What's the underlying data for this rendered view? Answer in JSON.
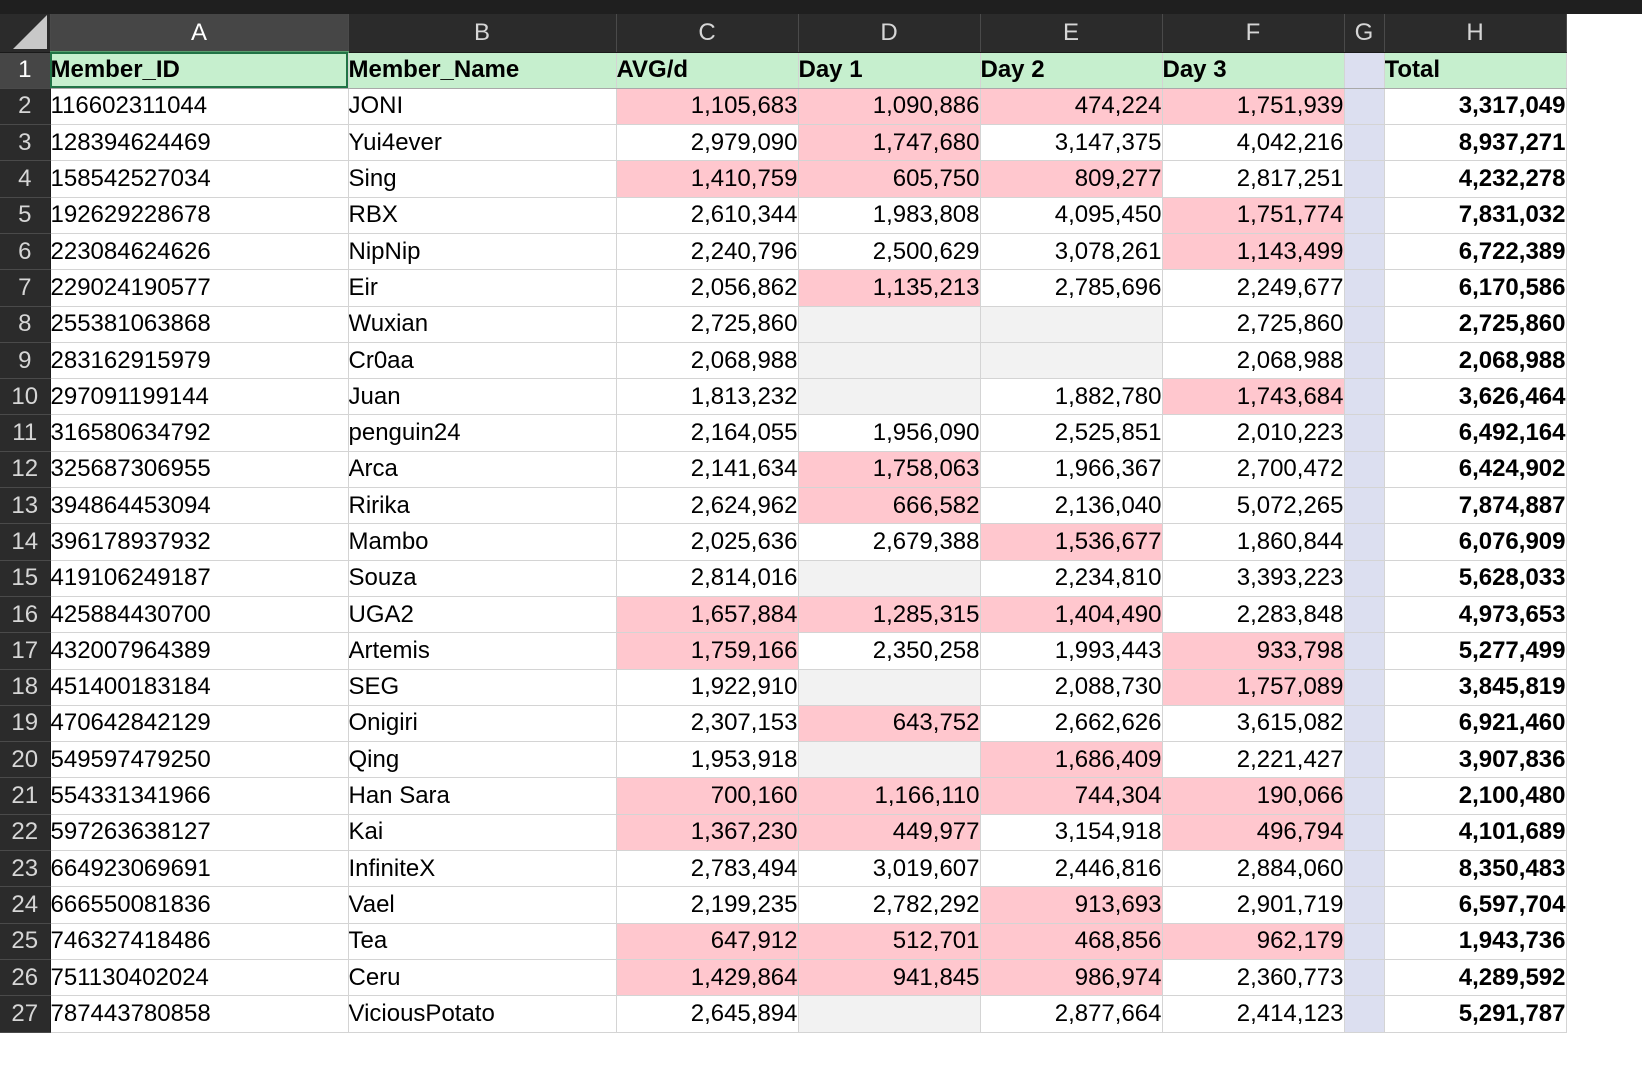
{
  "sheet": {
    "column_headers": [
      "A",
      "B",
      "C",
      "D",
      "E",
      "F",
      "G",
      "H"
    ],
    "header_cells": {
      "A": "Member_ID",
      "B": "Member_Name",
      "C": "AVG/d",
      "D": "Day 1",
      "E": "Day 2",
      "F": "Day 3",
      "G": "",
      "H": "Total"
    },
    "colors": {
      "header_fill": "#c6efce",
      "low_value_fill": "#ffc7ce",
      "empty_fill": "#f2f2f2",
      "spacer_column_fill": "#dcdff0"
    },
    "rows": [
      {
        "n": "2",
        "id": "116602311044",
        "name": "JONI",
        "avg": "1,105,683",
        "d1": "1,090,886",
        "d2": "474,224",
        "d3": "1,751,939",
        "total": "3,317,049",
        "flags": {
          "avg": "low",
          "d1": "low",
          "d2": "low",
          "d3": "low"
        }
      },
      {
        "n": "3",
        "id": "128394624469",
        "name": "Yui4ever",
        "avg": "2,979,090",
        "d1": "1,747,680",
        "d2": "3,147,375",
        "d3": "4,042,216",
        "total": "8,937,271",
        "flags": {
          "d1": "low"
        }
      },
      {
        "n": "4",
        "id": "158542527034",
        "name": "Sing",
        "avg": "1,410,759",
        "d1": "605,750",
        "d2": "809,277",
        "d3": "2,817,251",
        "total": "4,232,278",
        "flags": {
          "avg": "low",
          "d1": "low",
          "d2": "low"
        }
      },
      {
        "n": "5",
        "id": "192629228678",
        "name": "RBX",
        "avg": "2,610,344",
        "d1": "1,983,808",
        "d2": "4,095,450",
        "d3": "1,751,774",
        "total": "7,831,032",
        "flags": {
          "d3": "low"
        }
      },
      {
        "n": "6",
        "id": "223084624626",
        "name": "NipNip",
        "avg": "2,240,796",
        "d1": "2,500,629",
        "d2": "3,078,261",
        "d3": "1,143,499",
        "total": "6,722,389",
        "flags": {
          "d3": "low"
        }
      },
      {
        "n": "7",
        "id": "229024190577",
        "name": "Eir",
        "avg": "2,056,862",
        "d1": "1,135,213",
        "d2": "2,785,696",
        "d3": "2,249,677",
        "total": "6,170,586",
        "flags": {
          "d1": "low"
        }
      },
      {
        "n": "8",
        "id": "255381063868",
        "name": "Wuxian",
        "avg": "2,725,860",
        "d1": "",
        "d2": "",
        "d3": "2,725,860",
        "total": "2,725,860",
        "flags": {
          "d1": "empty",
          "d2": "empty"
        }
      },
      {
        "n": "9",
        "id": "283162915979",
        "name": "Cr0aa",
        "avg": "2,068,988",
        "d1": "",
        "d2": "",
        "d3": "2,068,988",
        "total": "2,068,988",
        "flags": {
          "d1": "empty",
          "d2": "empty"
        }
      },
      {
        "n": "10",
        "id": "297091199144",
        "name": "Juan",
        "avg": "1,813,232",
        "d1": "",
        "d2": "1,882,780",
        "d3": "1,743,684",
        "total": "3,626,464",
        "flags": {
          "d1": "empty",
          "d3": "low"
        }
      },
      {
        "n": "11",
        "id": "316580634792",
        "name": "penguin24",
        "avg": "2,164,055",
        "d1": "1,956,090",
        "d2": "2,525,851",
        "d3": "2,010,223",
        "total": "6,492,164",
        "flags": {}
      },
      {
        "n": "12",
        "id": "325687306955",
        "name": "Arca",
        "avg": "2,141,634",
        "d1": "1,758,063",
        "d2": "1,966,367",
        "d3": "2,700,472",
        "total": "6,424,902",
        "flags": {
          "d1": "low"
        }
      },
      {
        "n": "13",
        "id": "394864453094",
        "name": "Ririka",
        "avg": "2,624,962",
        "d1": "666,582",
        "d2": "2,136,040",
        "d3": "5,072,265",
        "total": "7,874,887",
        "flags": {
          "d1": "low"
        }
      },
      {
        "n": "14",
        "id": "396178937932",
        "name": "Mambo",
        "avg": "2,025,636",
        "d1": "2,679,388",
        "d2": "1,536,677",
        "d3": "1,860,844",
        "total": "6,076,909",
        "flags": {
          "d2": "low"
        }
      },
      {
        "n": "15",
        "id": "419106249187",
        "name": "Souza",
        "avg": "2,814,016",
        "d1": "",
        "d2": "2,234,810",
        "d3": "3,393,223",
        "total": "5,628,033",
        "flags": {
          "d1": "empty"
        }
      },
      {
        "n": "16",
        "id": "425884430700",
        "name": "UGA2",
        "avg": "1,657,884",
        "d1": "1,285,315",
        "d2": "1,404,490",
        "d3": "2,283,848",
        "total": "4,973,653",
        "flags": {
          "avg": "low",
          "d1": "low",
          "d2": "low"
        }
      },
      {
        "n": "17",
        "id": "432007964389",
        "name": "Artemis",
        "avg": "1,759,166",
        "d1": "2,350,258",
        "d2": "1,993,443",
        "d3": "933,798",
        "total": "5,277,499",
        "flags": {
          "avg": "low",
          "d3": "low"
        }
      },
      {
        "n": "18",
        "id": "451400183184",
        "name": "SEG",
        "avg": "1,922,910",
        "d1": "",
        "d2": "2,088,730",
        "d3": "1,757,089",
        "total": "3,845,819",
        "flags": {
          "d1": "empty",
          "d3": "low"
        }
      },
      {
        "n": "19",
        "id": "470642842129",
        "name": "Onigiri",
        "avg": "2,307,153",
        "d1": "643,752",
        "d2": "2,662,626",
        "d3": "3,615,082",
        "total": "6,921,460",
        "flags": {
          "d1": "low"
        }
      },
      {
        "n": "20",
        "id": "549597479250",
        "name": "Qing",
        "avg": "1,953,918",
        "d1": "",
        "d2": "1,686,409",
        "d3": "2,221,427",
        "total": "3,907,836",
        "flags": {
          "d1": "empty",
          "d2": "low"
        }
      },
      {
        "n": "21",
        "id": "554331341966",
        "name": "Han Sara",
        "avg": "700,160",
        "d1": "1,166,110",
        "d2": "744,304",
        "d3": "190,066",
        "total": "2,100,480",
        "flags": {
          "avg": "low",
          "d1": "low",
          "d2": "low",
          "d3": "low"
        }
      },
      {
        "n": "22",
        "id": "597263638127",
        "name": "Kai",
        "avg": "1,367,230",
        "d1": "449,977",
        "d2": "3,154,918",
        "d3": "496,794",
        "total": "4,101,689",
        "flags": {
          "avg": "low",
          "d1": "low",
          "d3": "low"
        }
      },
      {
        "n": "23",
        "id": "664923069691",
        "name": "InfiniteX",
        "avg": "2,783,494",
        "d1": "3,019,607",
        "d2": "2,446,816",
        "d3": "2,884,060",
        "total": "8,350,483",
        "flags": {}
      },
      {
        "n": "24",
        "id": "666550081836",
        "name": "Vael",
        "avg": "2,199,235",
        "d1": "2,782,292",
        "d2": "913,693",
        "d3": "2,901,719",
        "total": "6,597,704",
        "flags": {
          "d2": "low"
        }
      },
      {
        "n": "25",
        "id": "746327418486",
        "name": "Tea",
        "avg": "647,912",
        "d1": "512,701",
        "d2": "468,856",
        "d3": "962,179",
        "total": "1,943,736",
        "flags": {
          "avg": "low",
          "d1": "low",
          "d2": "low",
          "d3": "low"
        }
      },
      {
        "n": "26",
        "id": "751130402024",
        "name": "Ceru",
        "avg": "1,429,864",
        "d1": "941,845",
        "d2": "986,974",
        "d3": "2,360,773",
        "total": "4,289,592",
        "flags": {
          "avg": "low",
          "d1": "low",
          "d2": "low"
        }
      },
      {
        "n": "27",
        "id": "787443780858",
        "name": "ViciousPotato",
        "avg": "2,645,894",
        "d1": "",
        "d2": "2,877,664",
        "d3": "2,414,123",
        "total": "5,291,787",
        "flags": {
          "d1": "empty"
        }
      }
    ]
  }
}
